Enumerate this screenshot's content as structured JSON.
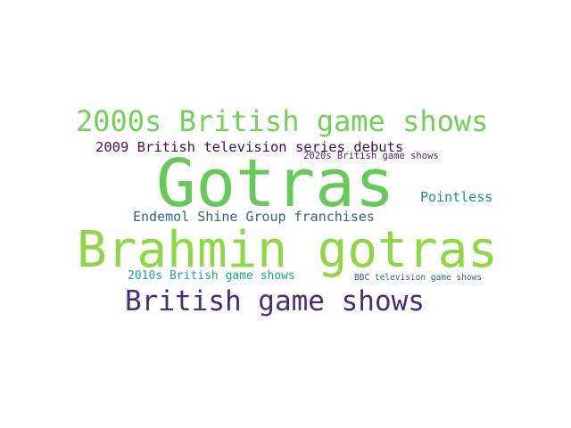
{
  "words": [
    {
      "text": "Gotras",
      "color": "#66c95a"
    },
    {
      "text": "Brahmin gotras",
      "color": "#8fd744"
    },
    {
      "text": "2000s British game shows",
      "color": "#73d055"
    },
    {
      "text": "British game shows",
      "color": "#482c7a"
    },
    {
      "text": "2009 British television series debuts",
      "color": "#440d59"
    },
    {
      "text": "Endemol Shine Group franchises",
      "color": "#355f8d"
    },
    {
      "text": "Pointless",
      "color": "#21908d"
    },
    {
      "text": "2020s British game shows",
      "color": "#482677"
    },
    {
      "text": "2010s British game shows",
      "color": "#20a386"
    },
    {
      "text": "BBC television game shows",
      "color": "#33638d"
    }
  ]
}
